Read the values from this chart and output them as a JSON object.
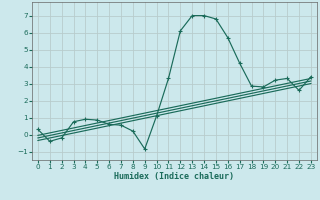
{
  "xlabel": "Humidex (Indice chaleur)",
  "bg_color": "#cce8ec",
  "grid_color": "#b8cccc",
  "line_color": "#1a6b5a",
  "xlim": [
    -0.5,
    23.5
  ],
  "ylim": [
    -1.5,
    7.8
  ],
  "xticks": [
    0,
    1,
    2,
    3,
    4,
    5,
    6,
    7,
    8,
    9,
    10,
    11,
    12,
    13,
    14,
    15,
    16,
    17,
    18,
    19,
    20,
    21,
    22,
    23
  ],
  "yticks": [
    -1,
    0,
    1,
    2,
    3,
    4,
    5,
    6,
    7
  ],
  "main_x": [
    0,
    1,
    2,
    3,
    4,
    5,
    6,
    7,
    8,
    9,
    10,
    11,
    12,
    13,
    14,
    15,
    16,
    17,
    18,
    19,
    20,
    21,
    22,
    23
  ],
  "main_y": [
    0.3,
    -0.4,
    -0.2,
    0.75,
    0.9,
    0.85,
    0.6,
    0.55,
    0.2,
    -0.85,
    1.1,
    3.3,
    6.1,
    7.0,
    7.0,
    6.8,
    5.7,
    4.2,
    2.85,
    2.8,
    3.2,
    3.3,
    2.6,
    3.4
  ],
  "line2_x": [
    0,
    23
  ],
  "line2_y": [
    -0.05,
    3.3
  ],
  "line3_x": [
    0,
    23
  ],
  "line3_y": [
    -0.2,
    3.15
  ],
  "line4_x": [
    0,
    23
  ],
  "line4_y": [
    -0.35,
    3.0
  ],
  "xticklabels": [
    "0",
    "1",
    "2",
    "3",
    "4",
    "5",
    "6",
    "7",
    "8",
    "9",
    "10",
    "11",
    "12",
    "13",
    "14",
    "15",
    "16",
    "17",
    "18",
    "19",
    "20",
    "21",
    "22",
    "23"
  ]
}
